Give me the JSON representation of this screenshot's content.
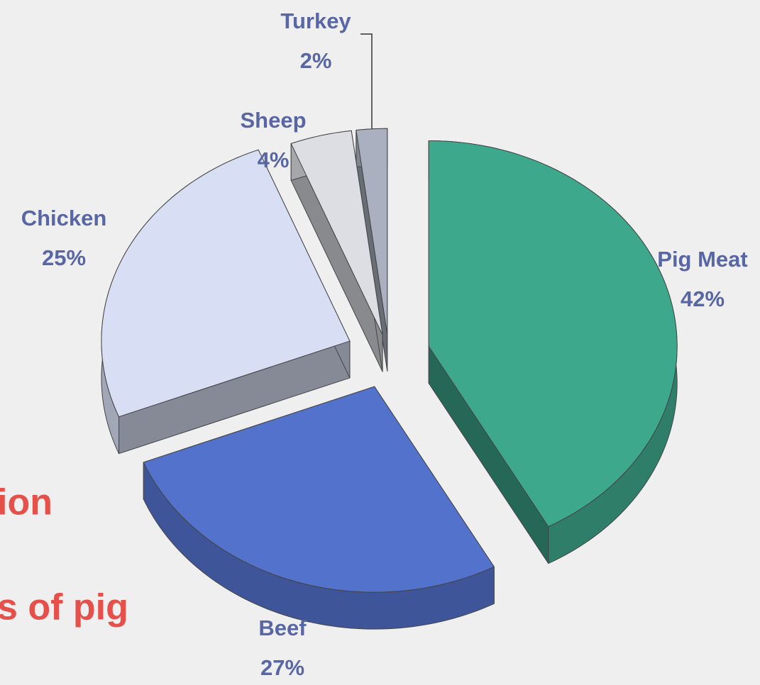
{
  "chart_data": {
    "type": "pie",
    "categories": [
      "Pig Meat",
      "Beef",
      "Chicken",
      "Sheep",
      "Turkey"
    ],
    "values": [
      42,
      27,
      25,
      4,
      2
    ],
    "value_labels": [
      "42%",
      "27%",
      "25%",
      "4%",
      "2%"
    ],
    "colors": [
      "#3ea88c",
      "#5372cc",
      "#d8def4",
      "#dcdee4",
      "#aab0bf"
    ],
    "annotations": [
      "ion",
      "s of pig"
    ]
  }
}
